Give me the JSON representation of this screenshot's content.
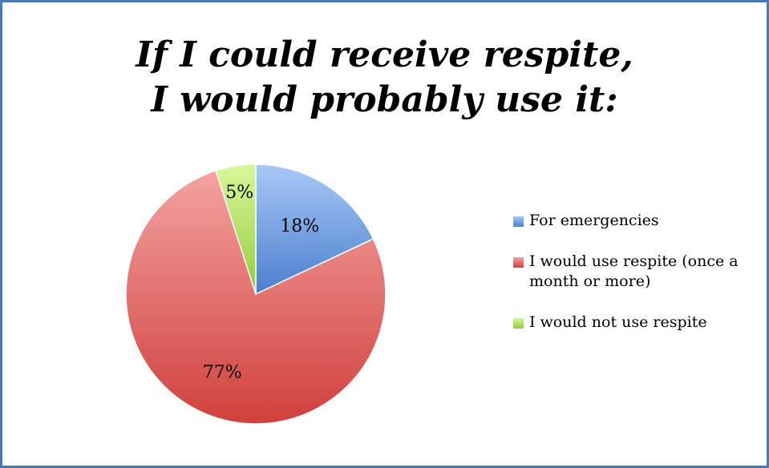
{
  "chart_data": {
    "type": "pie",
    "title": [
      "If I could receive respite,",
      "I would probably use it:"
    ],
    "categories": [
      "For emergencies",
      "I would use respite (once a month or more)",
      "I would not use respite"
    ],
    "values": [
      18,
      77,
      5
    ],
    "labels": [
      "18%",
      "77%",
      "5%"
    ],
    "colors": [
      {
        "light": "#a9c9f4",
        "dark": "#4a7fd0"
      },
      {
        "light": "#f4a3a1",
        "dark": "#d0403c"
      },
      {
        "light": "#d9f79a",
        "dark": "#93cc3c"
      }
    ],
    "legend": "right",
    "start_angle_deg": 0,
    "direction": "clockwise"
  },
  "legend": {
    "items": [
      {
        "label": "For emergencies",
        "color": "#4a86d6"
      },
      {
        "label": "I would use respite (once a month or more)",
        "color": "#d9534f"
      },
      {
        "label": "I would not use respite",
        "color": "#9bd449"
      }
    ]
  }
}
